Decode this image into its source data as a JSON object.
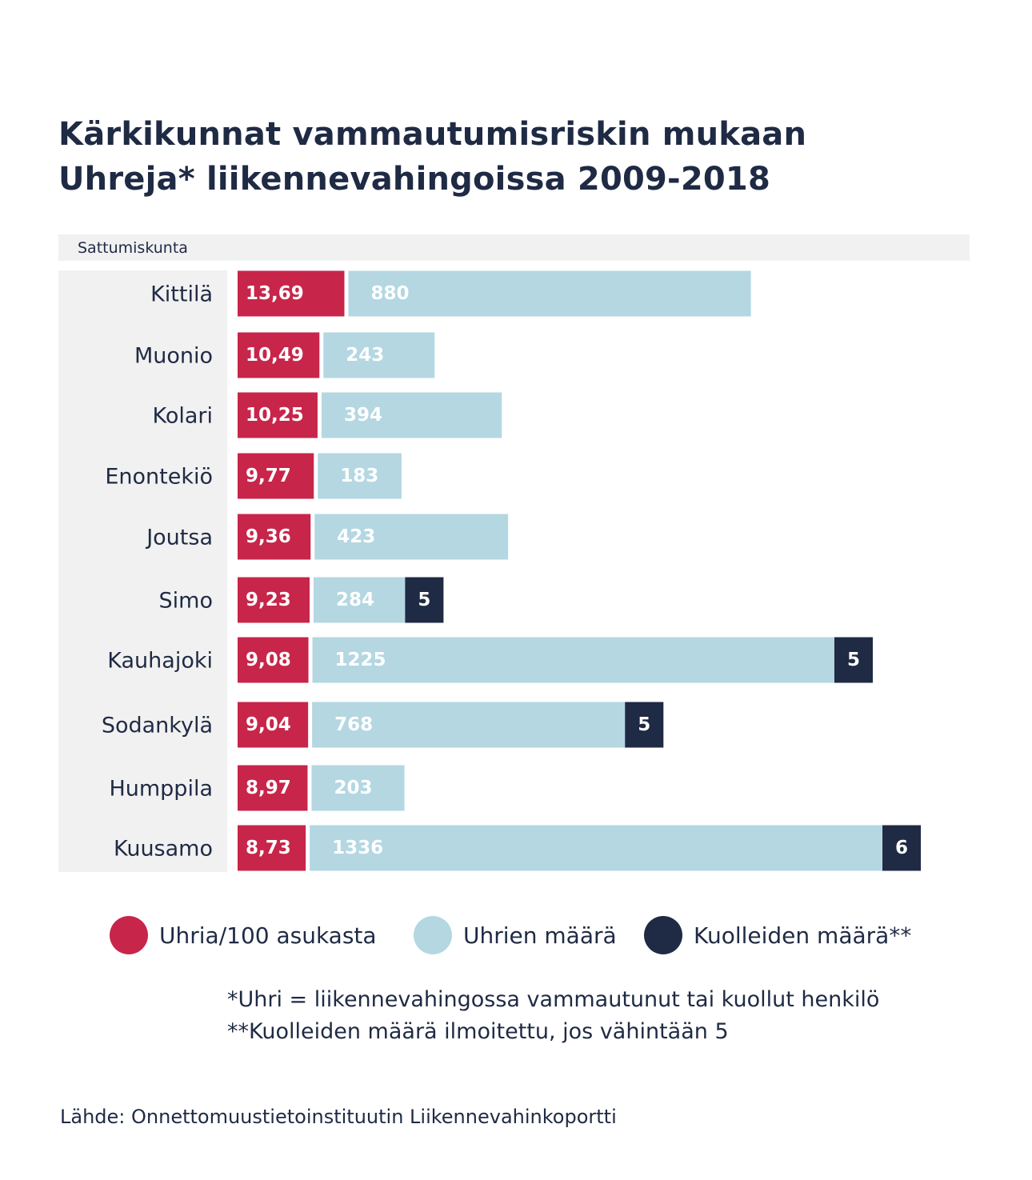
{
  "title": {
    "line1": "Kärkikunnat vammautumisriskin mukaan",
    "line2": "Uhreja* liikennevahingoissa 2009-2018"
  },
  "header_label": "Sattumiskunta",
  "colors": {
    "rate": "#c8254a",
    "victims": "#b4d7e2",
    "deaths": "#1f2a44",
    "text": "#1f2a44",
    "panel": "#f1f1f1"
  },
  "chart_data": {
    "type": "bar",
    "orientation": "horizontal",
    "stacked": true,
    "categories": [
      "Kittilä",
      "Muonio",
      "Kolari",
      "Enontekiö",
      "Joutsa",
      "Simo",
      "Kauhajoki",
      "Sodankylä",
      "Humppila",
      "Kuusamo"
    ],
    "series": [
      {
        "name": "Uhria/100 asukasta",
        "values": [
          "13,69",
          "10,49",
          "10,25",
          "9,77",
          "9,36",
          "9,23",
          "9,08",
          "9,04",
          "8,97",
          "8,73"
        ],
        "numeric": [
          13.69,
          10.49,
          10.25,
          9.77,
          9.36,
          9.23,
          9.08,
          9.04,
          8.97,
          8.73
        ]
      },
      {
        "name": "Uhrien määrä",
        "values": [
          880,
          243,
          394,
          183,
          423,
          284,
          1225,
          768,
          203,
          1336
        ]
      },
      {
        "name": "Kuolleiden määrä**",
        "values": [
          null,
          null,
          null,
          null,
          null,
          5,
          5,
          5,
          null,
          6
        ]
      }
    ]
  },
  "legend": [
    {
      "label": "Uhria/100 asukasta"
    },
    {
      "label": "Uhrien määrä"
    },
    {
      "label": "Kuolleiden määrä**"
    }
  ],
  "notes": {
    "line1": "*Uhri = liikennevahingossa vammautunut tai kuollut henkilö",
    "line2": "**Kuolleiden määrä ilmoitettu, jos vähintään 5"
  },
  "source": "Lähde: Onnettomuustietoinstituutin Liikennevahinkoportti"
}
